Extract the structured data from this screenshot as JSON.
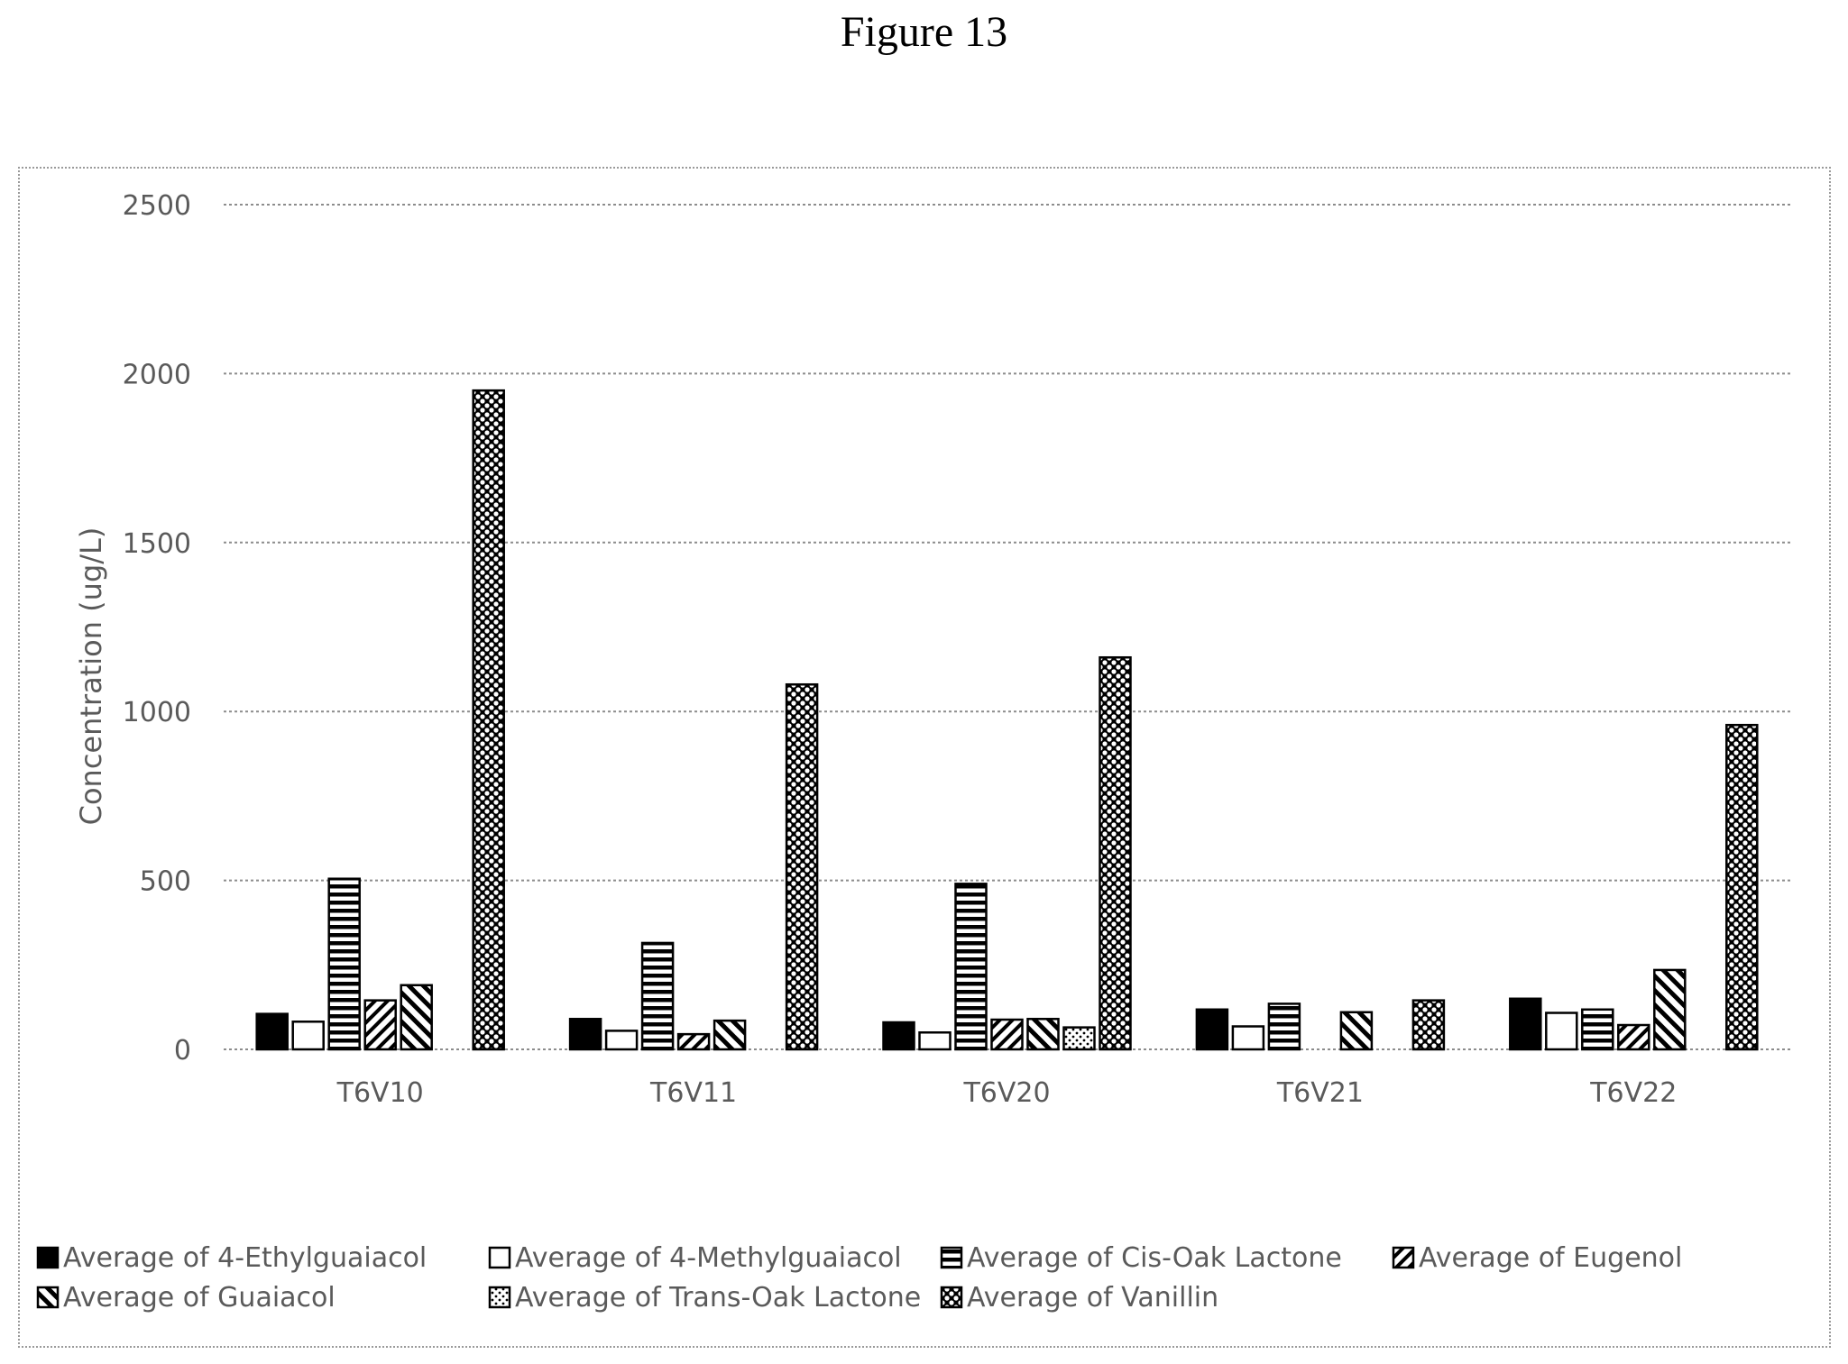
{
  "figure_title": "Figure 13",
  "chart_data": {
    "type": "bar",
    "categories": [
      "T6V10",
      "T6V11",
      "T6V20",
      "T6V21",
      "T6V22"
    ],
    "ylabel": "Concentration (ug/L)",
    "xlabel": "",
    "ylim": [
      0,
      2500
    ],
    "yticks": [
      0,
      500,
      1000,
      1500,
      2000,
      2500
    ],
    "grid": "horizontal dotted",
    "legend_position": "bottom",
    "series": [
      {
        "name": "Average of 4-Ethylguaiacol",
        "pattern": "solid",
        "values": [
          105,
          90,
          80,
          118,
          150
        ]
      },
      {
        "name": "Average of 4-Methylguaiacol",
        "pattern": "empty",
        "values": [
          82,
          55,
          50,
          68,
          108
        ]
      },
      {
        "name": "Average of Cis-Oak Lactone",
        "pattern": "hstripes",
        "values": [
          505,
          315,
          490,
          135,
          118
        ]
      },
      {
        "name": "Average of Eugenol",
        "pattern": "diag-fwd",
        "values": [
          145,
          45,
          88,
          null,
          72
        ]
      },
      {
        "name": "Average of Guaiacol",
        "pattern": "diag-back",
        "values": [
          190,
          85,
          90,
          110,
          235
        ]
      },
      {
        "name": "Average of Trans-Oak Lactone",
        "pattern": "dots",
        "values": [
          null,
          null,
          65,
          null,
          null
        ]
      },
      {
        "name": "Average of Vanillin",
        "pattern": "checker",
        "values": [
          1950,
          1080,
          1160,
          145,
          960
        ]
      }
    ]
  }
}
